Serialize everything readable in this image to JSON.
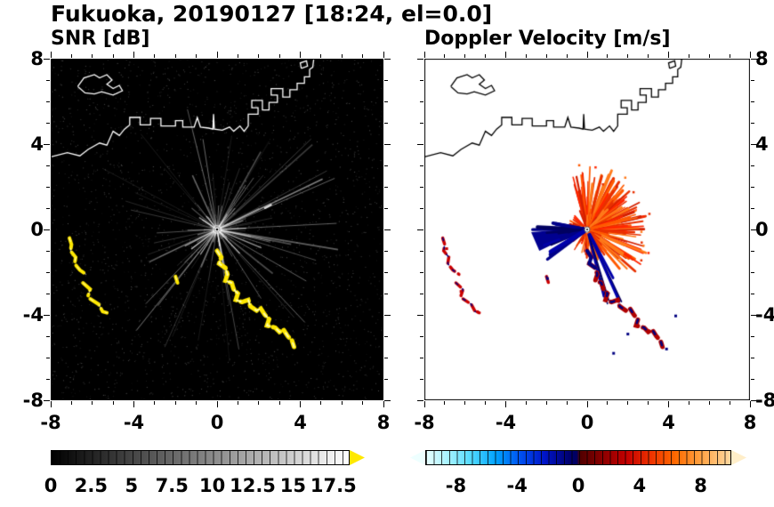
{
  "title": "Fukuoka, 20190127 [18:24, el=0.0]",
  "chart_data": {
    "type": "heatmap",
    "panels": [
      {
        "title": "SNR [dB]",
        "units": "dB",
        "xlim": [
          -8,
          8
        ],
        "ylim": [
          -8,
          8
        ],
        "xticks": [
          -8,
          -4,
          0,
          4,
          8
        ],
        "yticks": [
          -8,
          -4,
          0,
          4,
          8
        ],
        "tick_labels": [
          "-8",
          "-4",
          "0",
          "4",
          "8"
        ],
        "minor_tick_step": 1,
        "bg_color": "#000000",
        "coast_color": "#ffffff",
        "echo_color": "#ffe800",
        "speckle": {
          "count": 2400,
          "seed": 7
        },
        "rays": {
          "count": 90,
          "seed": 13
        },
        "bright_rays": [
          [
            25,
            5.6,
            0.5
          ],
          [
            115,
            2.8,
            0.4
          ],
          [
            205,
            3.6,
            0.35
          ],
          [
            338,
            2.3,
            0.55
          ],
          [
            60,
            4.2,
            0.3
          ],
          [
            282,
            2.0,
            0.35
          ]
        ]
      },
      {
        "title": "Doppler Velocity [m/s]",
        "units": "m/s",
        "xlim": [
          -8,
          8
        ],
        "ylim": [
          -8,
          8
        ],
        "xticks": [
          -8,
          -4,
          0,
          4,
          8
        ],
        "yticks": [
          -8,
          -4,
          0,
          4,
          8
        ],
        "tick_labels": [
          "-8",
          "-4",
          "0",
          "4",
          "8"
        ],
        "minor_tick_step": 1,
        "bg_color": "#ffffff",
        "coast_color": "#000000",
        "away_palette": [
          "#ff2600",
          "#ff5a00",
          "#e83000",
          "#ff7a1a",
          "#d42000"
        ],
        "toward_palette": [
          "#000088",
          "#0000aa",
          "#000060"
        ],
        "toward_color": "#000090",
        "trail_color": "#b00000",
        "fan": {
          "count": 175,
          "seed": 21,
          "angle_deg": [
            -50,
            110
          ],
          "max_len_km": 3.1
        },
        "under_fan": {
          "count": 26,
          "seed": 3,
          "angle_deg": [
            -128,
            -53
          ],
          "max_len_km": 1.5
        },
        "wedge": {
          "count": 20,
          "seed": 5,
          "angle_deg": [
            166,
            218
          ],
          "max_len_km": 2.7
        },
        "down_streaks": {
          "count": 7,
          "seed": 9,
          "angle_deg": [
            -78,
            -58
          ],
          "len_km": [
            2.3,
            3.9
          ]
        }
      }
    ],
    "radar_center_km": [
      0,
      0
    ],
    "coastline": {
      "main": [
        [
          -8.0,
          3.4
        ],
        [
          -7.2,
          3.6
        ],
        [
          -6.6,
          3.45
        ],
        [
          -6.2,
          3.75
        ],
        [
          -5.65,
          4.05
        ],
        [
          -5.3,
          3.95
        ],
        [
          -5.0,
          4.6
        ],
        [
          -4.7,
          4.4
        ],
        [
          -4.45,
          4.7
        ],
        [
          -4.2,
          4.9
        ],
        [
          -4.2,
          5.25
        ],
        [
          -3.7,
          5.25
        ],
        [
          -3.7,
          4.9
        ],
        [
          -3.2,
          4.9
        ],
        [
          -3.2,
          5.2
        ],
        [
          -2.7,
          5.2
        ],
        [
          -2.7,
          4.85
        ],
        [
          -2.0,
          4.85
        ],
        [
          -2.0,
          5.1
        ],
        [
          -1.65,
          5.1
        ],
        [
          -1.65,
          4.8
        ],
        [
          -1.1,
          4.8
        ],
        [
          -0.95,
          5.25
        ],
        [
          -0.8,
          4.8
        ],
        [
          -0.4,
          4.75
        ],
        [
          -0.2,
          4.7
        ],
        [
          -0.17,
          5.4
        ],
        [
          -0.13,
          4.7
        ],
        [
          0.25,
          4.65
        ],
        [
          0.6,
          4.8
        ],
        [
          0.8,
          4.6
        ],
        [
          1.1,
          4.85
        ],
        [
          1.3,
          4.6
        ],
        [
          1.5,
          4.85
        ],
        [
          1.5,
          5.4
        ],
        [
          1.97,
          5.4
        ],
        [
          1.97,
          5.7
        ],
        [
          1.67,
          5.7
        ],
        [
          1.67,
          6.05
        ],
        [
          2.18,
          6.05
        ],
        [
          2.18,
          5.6
        ],
        [
          2.5,
          5.6
        ],
        [
          2.5,
          5.95
        ],
        [
          2.9,
          5.95
        ],
        [
          2.9,
          6.3
        ],
        [
          2.6,
          6.3
        ],
        [
          2.6,
          6.6
        ],
        [
          3.16,
          6.6
        ],
        [
          3.16,
          6.2
        ],
        [
          3.5,
          6.2
        ],
        [
          3.5,
          6.55
        ],
        [
          3.85,
          6.55
        ],
        [
          3.85,
          6.85
        ],
        [
          4.2,
          6.85
        ],
        [
          4.2,
          7.15
        ],
        [
          4.45,
          7.15
        ],
        [
          4.45,
          7.5
        ],
        [
          4.6,
          7.6
        ],
        [
          4.65,
          8.0
        ]
      ],
      "island": [
        [
          -6.7,
          6.7
        ],
        [
          -6.4,
          7.1
        ],
        [
          -5.9,
          7.25
        ],
        [
          -5.65,
          7.1
        ],
        [
          -5.3,
          7.25
        ],
        [
          -5.05,
          7.0
        ],
        [
          -5.3,
          6.8
        ],
        [
          -5.0,
          6.6
        ],
        [
          -4.7,
          6.75
        ],
        [
          -4.55,
          6.5
        ],
        [
          -5.0,
          6.3
        ],
        [
          -5.55,
          6.45
        ],
        [
          -5.9,
          6.35
        ],
        [
          -6.35,
          6.4
        ],
        [
          -6.7,
          6.7
        ]
      ],
      "islet": [
        [
          4.05,
          7.55
        ],
        [
          4.35,
          7.65
        ],
        [
          4.3,
          7.9
        ],
        [
          4.0,
          7.8
        ],
        [
          4.05,
          7.55
        ]
      ]
    },
    "ship_trail_km": [
      [
        0.0,
        -1.0
      ],
      [
        0.2,
        -1.3
      ],
      [
        0.1,
        -1.6
      ],
      [
        0.4,
        -1.8
      ],
      [
        0.5,
        -2.1
      ],
      [
        0.4,
        -2.4
      ],
      [
        0.7,
        -2.5
      ],
      [
        0.8,
        -2.8
      ],
      [
        1.0,
        -3.0
      ],
      [
        0.9,
        -3.3
      ],
      [
        1.2,
        -3.4
      ],
      [
        1.5,
        -3.3
      ],
      [
        1.6,
        -3.6
      ],
      [
        1.9,
        -3.8
      ],
      [
        2.1,
        -3.7
      ],
      [
        2.3,
        -4.0
      ],
      [
        2.5,
        -4.2
      ],
      [
        2.4,
        -4.5
      ],
      [
        2.8,
        -4.6
      ],
      [
        3.0,
        -4.8
      ],
      [
        3.2,
        -4.7
      ],
      [
        3.4,
        -5.0
      ],
      [
        3.6,
        -5.2
      ],
      [
        3.7,
        -5.5
      ]
    ],
    "clutter_arcs_km": [
      [
        [
          -7.1,
          -0.4
        ],
        [
          -7.0,
          -0.7
        ],
        [
          -7.05,
          -1.0
        ],
        [
          -6.8,
          -1.3
        ],
        [
          -6.85,
          -1.6
        ],
        [
          -6.6,
          -1.9
        ],
        [
          -6.3,
          -2.1
        ]
      ],
      [
        [
          -6.45,
          -2.5
        ],
        [
          -6.1,
          -2.8
        ],
        [
          -6.2,
          -3.1
        ]
      ],
      [
        [
          -6.1,
          -3.25
        ],
        [
          -5.7,
          -3.5
        ],
        [
          -5.5,
          -3.85
        ],
        [
          -5.3,
          -3.9
        ]
      ],
      [
        [
          -2.0,
          -2.2
        ],
        [
          -1.9,
          -2.5
        ]
      ]
    ],
    "extra_echo_km": [
      [
        2.3,
        1.0
      ],
      [
        2.6,
        1.15
      ]
    ],
    "doppler_specks": {
      "toward": [
        [
          -1.95,
          -2.3
        ],
        [
          2.0,
          -4.9
        ],
        [
          3.9,
          -5.6
        ],
        [
          4.35,
          -4.05
        ],
        [
          1.3,
          -5.8
        ]
      ],
      "away": [
        [
          -6.9,
          -0.9
        ],
        [
          -5.4,
          -3.85
        ],
        [
          -6.2,
          -2.9
        ]
      ]
    },
    "colorbars": [
      {
        "name": "snr",
        "labels": [
          "0",
          "2.5",
          "5",
          "7.5",
          "10",
          "12.5",
          "15",
          "17.5"
        ],
        "label_values": [
          0,
          2.5,
          5,
          7.5,
          10,
          12.5,
          15,
          17.5
        ],
        "range": [
          0,
          18.5
        ],
        "tick_step": 0.5,
        "gradient": [
          {
            "p": 0,
            "c": "#000000"
          },
          {
            "p": 1,
            "c": "#ffffff"
          }
        ],
        "over_color": "#ffe800"
      },
      {
        "name": "velocity",
        "labels": [
          "-8",
          "-4",
          "0",
          "4",
          "8"
        ],
        "label_values": [
          -8,
          -4,
          0,
          4,
          8
        ],
        "range": [
          -10,
          10
        ],
        "tick_step": 0.5,
        "gradient": [
          {
            "p": 0,
            "c": "#e8ffff"
          },
          {
            "p": 0.07,
            "c": "#a8f2ff"
          },
          {
            "p": 0.15,
            "c": "#4fd8ff"
          },
          {
            "p": 0.23,
            "c": "#00a2ff"
          },
          {
            "p": 0.31,
            "c": "#0050f0"
          },
          {
            "p": 0.39,
            "c": "#0014c8"
          },
          {
            "p": 0.47,
            "c": "#000070"
          },
          {
            "p": 0.495,
            "c": "#000060"
          },
          {
            "p": 0.505,
            "c": "#500000"
          },
          {
            "p": 0.58,
            "c": "#8c0000"
          },
          {
            "p": 0.66,
            "c": "#c40000"
          },
          {
            "p": 0.74,
            "c": "#ee3300"
          },
          {
            "p": 0.82,
            "c": "#ff6a00"
          },
          {
            "p": 0.9,
            "c": "#ffa040"
          },
          {
            "p": 1,
            "c": "#ffd9a0"
          }
        ],
        "under_color": "#eeffff",
        "over_color": "#ffeec9"
      }
    ]
  }
}
